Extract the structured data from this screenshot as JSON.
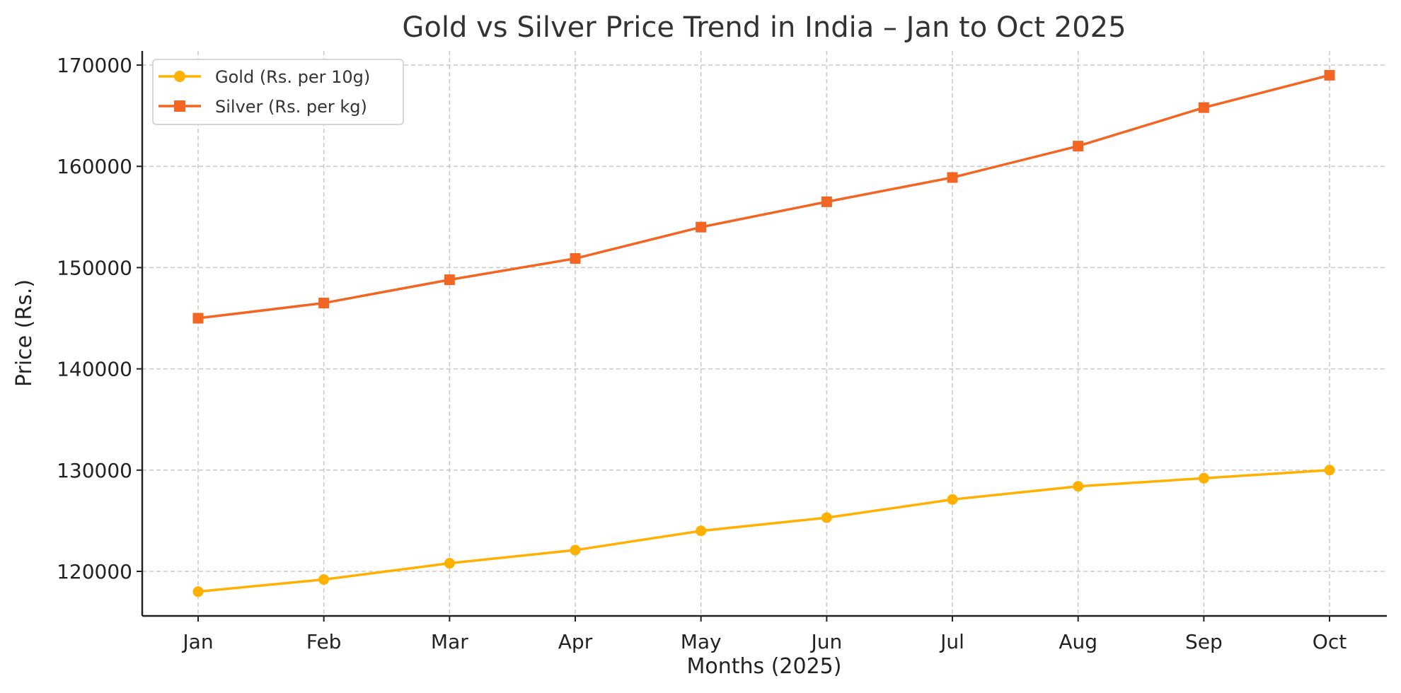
{
  "chart_data": {
    "type": "line",
    "title": "Gold vs Silver Price Trend in India – Jan to Oct 2025",
    "xlabel": "Months (2025)",
    "ylabel": "Price (Rs.)",
    "categories": [
      "Jan",
      "Feb",
      "Mar",
      "Apr",
      "May",
      "Jun",
      "Jul",
      "Aug",
      "Sep",
      "Oct"
    ],
    "ylim": [
      115600,
      171400
    ],
    "yticks": [
      120000,
      130000,
      140000,
      150000,
      160000,
      170000
    ],
    "ytick_labels": [
      "120000",
      "130000",
      "140000",
      "150000",
      "160000",
      "170000"
    ],
    "grid": true,
    "legend_position": "top-left",
    "series": [
      {
        "name": "Gold (Rs. per 10g)",
        "marker": "circle",
        "color": "#FFB000",
        "values": [
          118000,
          119200,
          120800,
          122100,
          124000,
          125300,
          127100,
          128400,
          129200,
          130000
        ]
      },
      {
        "name": "Silver (Rs. per kg)",
        "marker": "square",
        "color": "#F26522",
        "values": [
          145000,
          146500,
          148800,
          150900,
          154000,
          156500,
          158900,
          162000,
          165800,
          169000
        ]
      }
    ]
  }
}
